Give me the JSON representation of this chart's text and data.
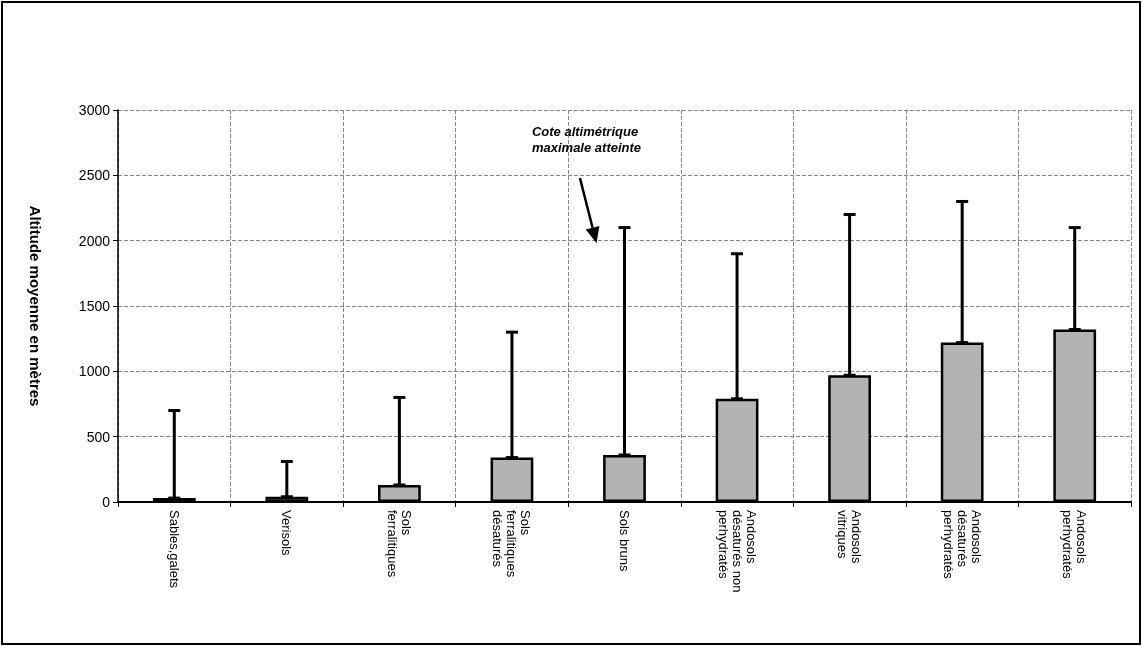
{
  "chart_data": {
    "type": "bar",
    "ylabel": "Altitude moyenne en mètres",
    "categories": [
      "Sables,galets",
      "Verisols",
      "Sols\nferralitiques",
      "Sols\nferralitiques\ndésaturés",
      "Sols bruns",
      "Andosols\ndésaturés non\nperhydratés",
      "Andosols\nvitriques",
      "Andosols\ndésaturés\nperhydratés",
      "Andosols\nperhydratés"
    ],
    "values": [
      30,
      40,
      130,
      340,
      360,
      790,
      970,
      1220,
      1320
    ],
    "errors": [
      [
        30,
        700
      ],
      [
        40,
        310
      ],
      [
        130,
        800
      ],
      [
        340,
        1300
      ],
      [
        360,
        2100
      ],
      [
        790,
        1900
      ],
      [
        970,
        2200
      ],
      [
        1220,
        2300
      ],
      [
        1320,
        2100
      ]
    ],
    "color": "#b3b3b3",
    "ylim": [
      0,
      3000
    ],
    "yticks": [
      0,
      500,
      1000,
      1500,
      2000,
      2500,
      3000
    ],
    "grid": true,
    "annotations": [
      "Cote altimétrique\nmaximale atteinte"
    ]
  }
}
